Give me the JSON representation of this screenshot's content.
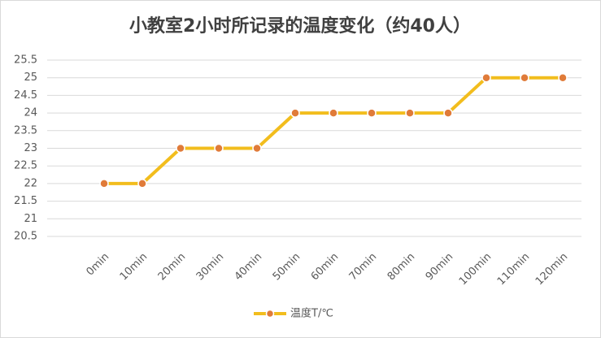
{
  "chart_data": {
    "type": "line",
    "title": "小教室2小时所记录的温度变化（约40人）",
    "categories": [
      "0min",
      "10min",
      "20min",
      "30min",
      "40min",
      "50min",
      "60min",
      "70min",
      "80min",
      "90min",
      "100min",
      "110min",
      "120min"
    ],
    "series": [
      {
        "name": "温度T/℃",
        "color": "#f2bd1d",
        "marker_color": "#e07b39",
        "values": [
          22,
          22,
          23,
          23,
          23,
          24,
          24,
          24,
          24,
          24,
          25,
          25,
          25
        ]
      }
    ],
    "ylim": [
      20.5,
      25.5
    ],
    "yticks": [
      20.5,
      21,
      21.5,
      22,
      22.5,
      23,
      23.5,
      24,
      24.5,
      25,
      25.5
    ],
    "grid": true,
    "legend": "bottom"
  }
}
